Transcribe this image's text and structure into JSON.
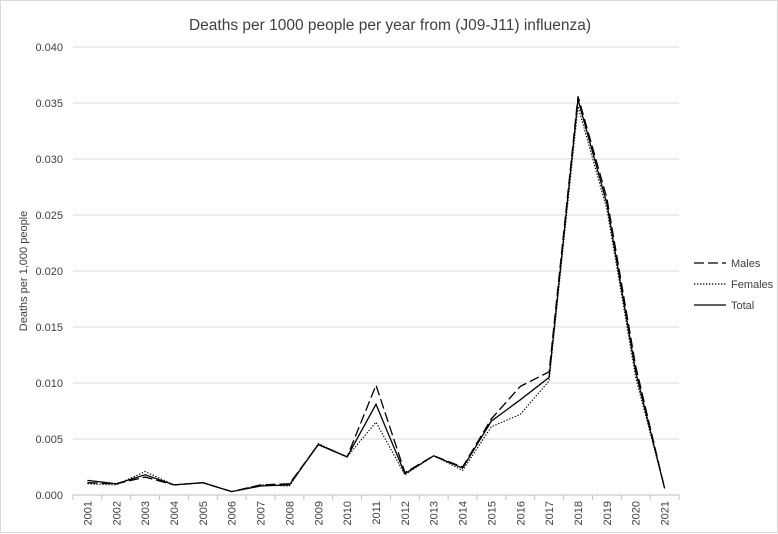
{
  "chart_data": {
    "type": "line",
    "title": "Deaths per 1000 people per year from (J09-J11) influenza)",
    "xlabel": "",
    "ylabel": "Deaths per 1,000 people",
    "ylim": [
      0,
      0.04
    ],
    "yticks": [
      "0.000",
      "0.005",
      "0.010",
      "0.015",
      "0.020",
      "0.025",
      "0.030",
      "0.035",
      "0.040"
    ],
    "ytick_values": [
      0,
      0.005,
      0.01,
      0.015,
      0.02,
      0.025,
      0.03,
      0.035,
      0.04
    ],
    "grid": true,
    "legend_position": "right",
    "categories": [
      "2001",
      "2002",
      "2003",
      "2004",
      "2005",
      "2006",
      "2007",
      "2008",
      "2009",
      "2010",
      "2011",
      "2012",
      "2013",
      "2014",
      "2015",
      "2016",
      "2017",
      "2018",
      "2019",
      "2020",
      "2021"
    ],
    "series": [
      {
        "name": "Males",
        "style": "dashed",
        "color": "#000000",
        "values": [
          0.0011,
          0.001,
          0.0016,
          0.0009,
          0.0011,
          0.0003,
          0.0009,
          0.001,
          0.0045,
          0.0034,
          0.0098,
          0.002,
          0.0035,
          0.0025,
          0.0068,
          0.0097,
          0.011,
          0.0356,
          0.0265,
          0.0115,
          0.0006
        ]
      },
      {
        "name": "Females",
        "style": "dotted",
        "color": "#000000",
        "values": [
          0.001,
          0.0009,
          0.0021,
          0.0009,
          0.0011,
          0.0003,
          0.0009,
          0.0008,
          0.0046,
          0.0034,
          0.0065,
          0.0018,
          0.0035,
          0.0022,
          0.0061,
          0.0072,
          0.0102,
          0.0347,
          0.0255,
          0.0105,
          0.0006
        ]
      },
      {
        "name": "Total",
        "style": "solid",
        "color": "#000000",
        "values": [
          0.0013,
          0.001,
          0.0018,
          0.0009,
          0.0011,
          0.0003,
          0.0008,
          0.0009,
          0.0045,
          0.0034,
          0.0081,
          0.0019,
          0.0035,
          0.0024,
          0.0066,
          0.0085,
          0.0105,
          0.0353,
          0.026,
          0.011,
          0.0006
        ]
      }
    ]
  }
}
